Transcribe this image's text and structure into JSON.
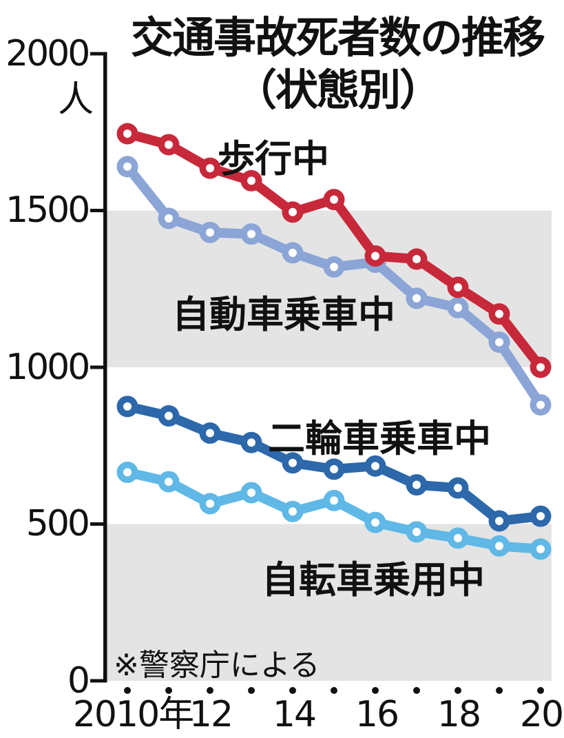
{
  "title": {
    "line1": "交通事故死者数の推移",
    "line2": "（状態別）"
  },
  "y_axis": {
    "unit": "人",
    "tick_labels": [
      "2000",
      "1500",
      "1000",
      "500",
      "0"
    ]
  },
  "source_note": "※警察庁による",
  "chart_data": {
    "type": "line",
    "title": "交通事故死者数の推移（状態別）",
    "xlabel": "年",
    "ylabel": "人",
    "ylim": [
      0,
      2000
    ],
    "y_ticks": [
      2000,
      1500,
      1000,
      500,
      0
    ],
    "x": [
      2010,
      2011,
      2012,
      2013,
      2014,
      2015,
      2016,
      2017,
      2018,
      2019,
      2020
    ],
    "x_tick_labels": [
      "2010年",
      "12",
      "14",
      "16",
      "18",
      "20"
    ],
    "grid": "off",
    "legend_position": "inline-labels-next-to-lines",
    "background_bands": [
      [
        1000,
        1500
      ],
      [
        0,
        500
      ]
    ],
    "band_color": "#E4E4E4",
    "axis_color": "#111111",
    "source": "※警察庁による",
    "series": [
      {
        "name": "歩行中",
        "color": "#C8293A",
        "values": [
          1745,
          1710,
          1635,
          1595,
          1495,
          1535,
          1355,
          1345,
          1255,
          1170,
          1000
        ]
      },
      {
        "name": "自動車乗車中",
        "color": "#8BA5D6",
        "values": [
          1640,
          1475,
          1430,
          1425,
          1365,
          1320,
          1335,
          1220,
          1190,
          1080,
          880
        ]
      },
      {
        "name": "二輪車乗車中",
        "color": "#2C68AA",
        "values": [
          875,
          845,
          790,
          760,
          695,
          675,
          685,
          625,
          615,
          510,
          525
        ]
      },
      {
        "name": "自転車乗用中",
        "color": "#5FB8E5",
        "values": [
          665,
          635,
          565,
          600,
          540,
          575,
          505,
          475,
          455,
          430,
          420
        ]
      }
    ]
  }
}
